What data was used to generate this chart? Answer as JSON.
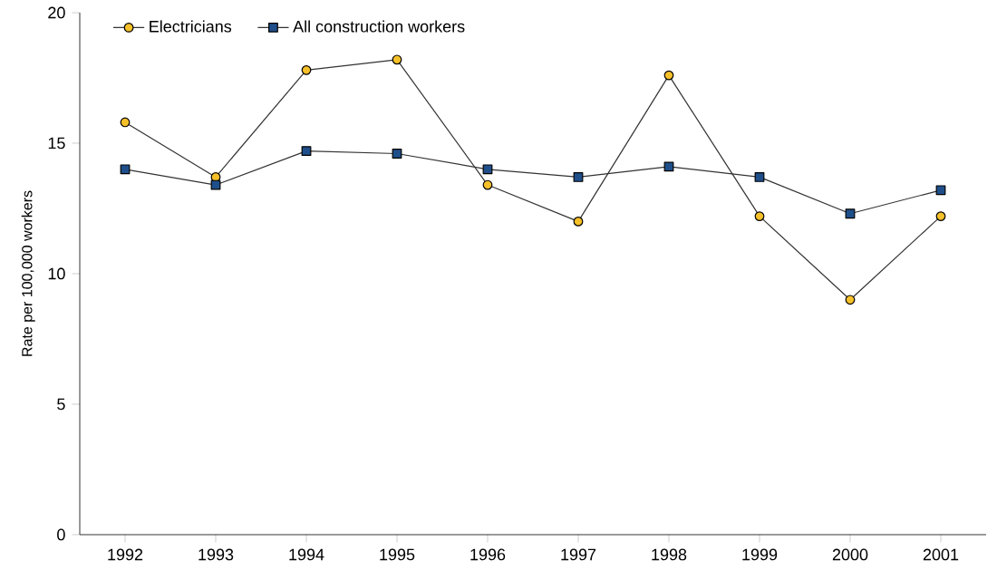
{
  "chart_data": {
    "type": "line",
    "ylabel": "Rate per 100,000 workers",
    "categories": [
      "1992",
      "1993",
      "1994",
      "1995",
      "1996",
      "1997",
      "1998",
      "1999",
      "2000",
      "2001"
    ],
    "series": [
      {
        "name": "Electricians",
        "color": "#f5c02a",
        "marker": "circle",
        "values": [
          15.8,
          13.7,
          17.8,
          18.2,
          13.4,
          12.0,
          17.6,
          12.2,
          9.0,
          12.2
        ]
      },
      {
        "name": "All construction workers",
        "color": "#1f4f8a",
        "marker": "square",
        "values": [
          14.0,
          13.4,
          14.7,
          14.6,
          14.0,
          13.7,
          14.1,
          13.7,
          12.3,
          13.2
        ]
      }
    ],
    "ylim": [
      0,
      20
    ],
    "yticks": [
      0,
      5,
      10,
      15,
      20
    ],
    "grid": false,
    "legend": "top left",
    "line_style": "solid"
  }
}
